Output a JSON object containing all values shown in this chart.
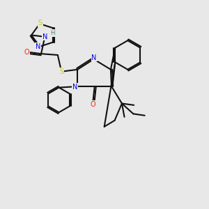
{
  "background_color": "#e8e8e8",
  "S_color": "#cccc00",
  "N_color": "#0000ee",
  "O_color": "#ff2200",
  "C_color": "#111111",
  "H_color": "#508080",
  "lw": 1.5,
  "fontsize": 7.0,
  "xlim": [
    0,
    10
  ],
  "ylim": [
    0,
    10
  ]
}
